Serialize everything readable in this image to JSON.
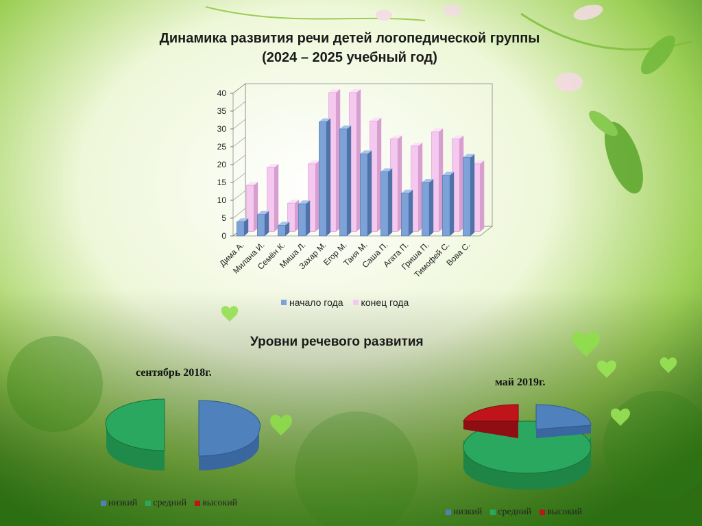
{
  "slide": {
    "title_line1": "Динамика развития речи детей логопедической группы",
    "title_line2": "(2024 – 2025 учебный год)",
    "levels_title": "Уровни речевого развития"
  },
  "colors": {
    "start_of_year": "#7da2d8",
    "end_of_year": "#f5c8ef",
    "low": "#4f81bd",
    "medium": "#2aa860",
    "high": "#c0141b"
  },
  "chart_data": [
    {
      "type": "bar",
      "categories": [
        "Дима А.",
        "Милана И.",
        "Семён К.",
        "Миша Л.",
        "Захар М.",
        "Егор М.",
        "Таня М.",
        "Саша П.",
        "Агата П.",
        "Гриша П.",
        "Тимофей С.",
        "Вова С."
      ],
      "series": [
        {
          "name": "начало года",
          "values": [
            4,
            6,
            3,
            9,
            32,
            30,
            23,
            18,
            12,
            15,
            17,
            22
          ]
        },
        {
          "name": "конец года",
          "values": [
            13,
            18,
            8,
            19,
            39,
            39,
            31,
            26,
            24,
            28,
            26,
            19
          ]
        }
      ],
      "ylim": [
        0,
        40
      ],
      "yticks": [
        0,
        5,
        10,
        15,
        20,
        25,
        30,
        35,
        40
      ],
      "legend": "bottom",
      "grid": false
    },
    {
      "type": "pie",
      "title": "сентябрь 2018г.",
      "labels": [
        "низкий",
        "средний",
        "высокий"
      ],
      "values": [
        50,
        50,
        0
      ],
      "legend": "bottom"
    },
    {
      "type": "pie",
      "title": "май 2019г.",
      "labels": [
        "низкий",
        "средний",
        "высокий"
      ],
      "values": [
        18,
        65,
        17
      ],
      "legend": "bottom"
    }
  ]
}
